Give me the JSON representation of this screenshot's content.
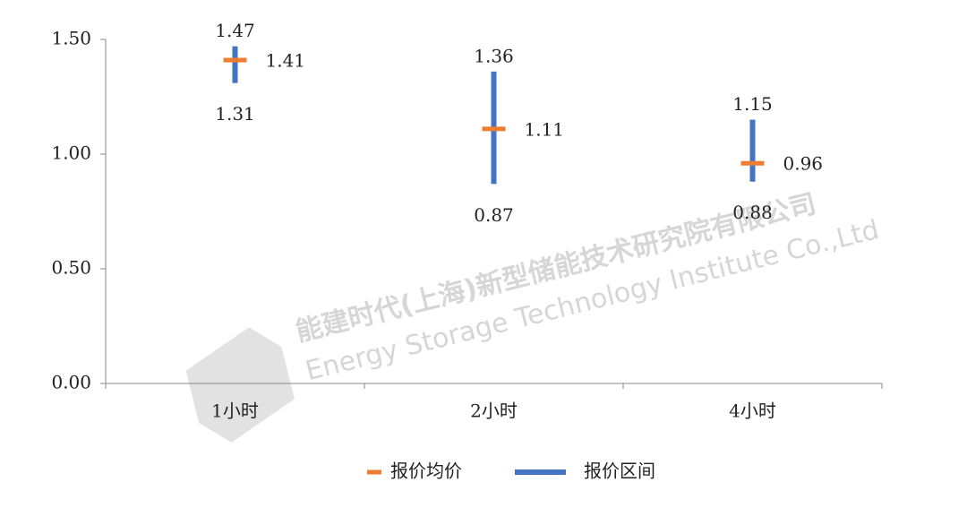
{
  "chart_data": {
    "type": "range",
    "categories": [
      "1小时",
      "2小时",
      "4小时"
    ],
    "series": [
      {
        "name": "报价均价",
        "color": "#ed7d31",
        "values": [
          1.41,
          1.11,
          0.96
        ]
      },
      {
        "name": "报价区间",
        "color": "#4472c4",
        "low": [
          1.31,
          0.87,
          0.88
        ],
        "high": [
          1.47,
          1.36,
          1.15
        ]
      }
    ],
    "ylim": [
      0,
      1.5
    ],
    "yticks": [
      {
        "value": 0,
        "label": "0.00"
      },
      {
        "value": 0.5,
        "label": "0.50"
      },
      {
        "value": 1,
        "label": "1.00"
      },
      {
        "value": 1.5,
        "label": "1.50"
      }
    ],
    "legend": "bottom",
    "watermark": [
      "能建时代(上海)新型储能技术研究院有限公司",
      "Energy Storage Technology Institute Co.,Ltd"
    ]
  }
}
